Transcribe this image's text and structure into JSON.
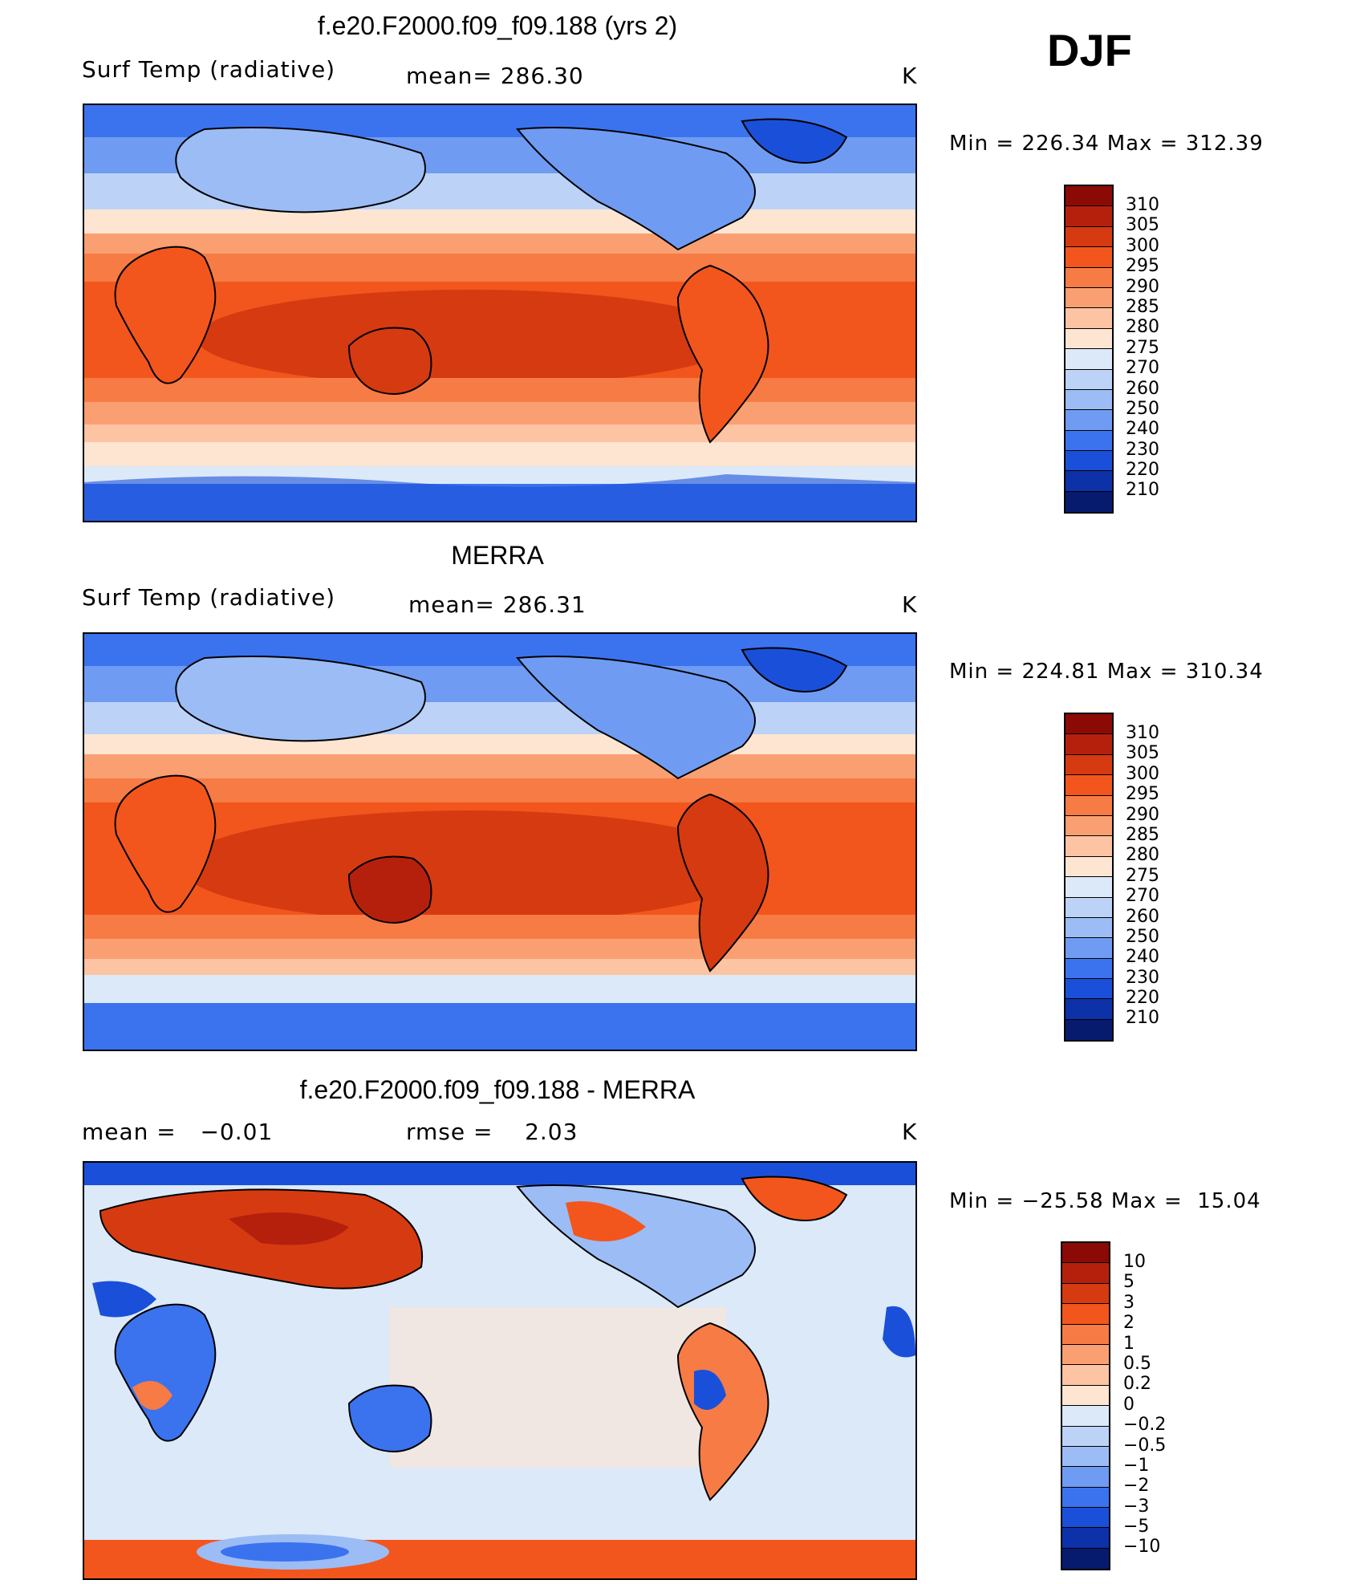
{
  "season": "DJF",
  "panels": [
    {
      "id": "model",
      "title": "f.e20.F2000.f09_f09.188 (yrs 2)",
      "left_label": "Surf Temp (radiative)",
      "center_label": "mean= 286.30",
      "units": "K",
      "minmax": "Min = 226.34 Max = 312.39",
      "colorbar": {
        "labels": [
          "310",
          "305",
          "300",
          "295",
          "290",
          "285",
          "280",
          "275",
          "270",
          "260",
          "250",
          "240",
          "230",
          "220",
          "210"
        ],
        "colors": [
          "#8b0a05",
          "#b5200d",
          "#d63a11",
          "#f2561c",
          "#f77b45",
          "#fa9f72",
          "#fdc4a3",
          "#fde5d2",
          "#dbe9f9",
          "#bcd3f7",
          "#9cbcf5",
          "#6f9cf2",
          "#3b73ee",
          "#1a50d9",
          "#0c31a8",
          "#061b6e"
        ]
      }
    },
    {
      "id": "obs",
      "title": "MERRA",
      "left_label": "Surf Temp (radiative)",
      "center_label": "mean= 286.31",
      "units": "K",
      "minmax": "Min = 224.81 Max = 310.34",
      "colorbar": {
        "labels": [
          "310",
          "305",
          "300",
          "295",
          "290",
          "285",
          "280",
          "275",
          "270",
          "260",
          "250",
          "240",
          "230",
          "220",
          "210"
        ],
        "colors": [
          "#8b0a05",
          "#b5200d",
          "#d63a11",
          "#f2561c",
          "#f77b45",
          "#fa9f72",
          "#fdc4a3",
          "#fde5d2",
          "#dbe9f9",
          "#bcd3f7",
          "#9cbcf5",
          "#6f9cf2",
          "#3b73ee",
          "#1a50d9",
          "#0c31a8",
          "#061b6e"
        ]
      }
    },
    {
      "id": "diff",
      "title": "f.e20.F2000.f09_f09.188 - MERRA",
      "left_label": "mean =   −0.01",
      "center_label": "rmse =    2.03",
      "units": "K",
      "minmax": "Min = −25.58 Max =  15.04",
      "colorbar": {
        "labels": [
          "10",
          "5",
          "3",
          "2",
          "1",
          "0.5",
          "0.2",
          "0",
          "−0.2",
          "−0.5",
          "−1",
          "−2",
          "−3",
          "−5",
          "−10"
        ],
        "colors": [
          "#8b0a05",
          "#b5200d",
          "#d63a11",
          "#f2561c",
          "#f77b45",
          "#fa9f72",
          "#fdc4a3",
          "#fde5d2",
          "#dbe9f9",
          "#bcd3f7",
          "#9cbcf5",
          "#6f9cf2",
          "#3b73ee",
          "#1a50d9",
          "#0c31a8",
          "#061b6e"
        ]
      }
    }
  ]
}
